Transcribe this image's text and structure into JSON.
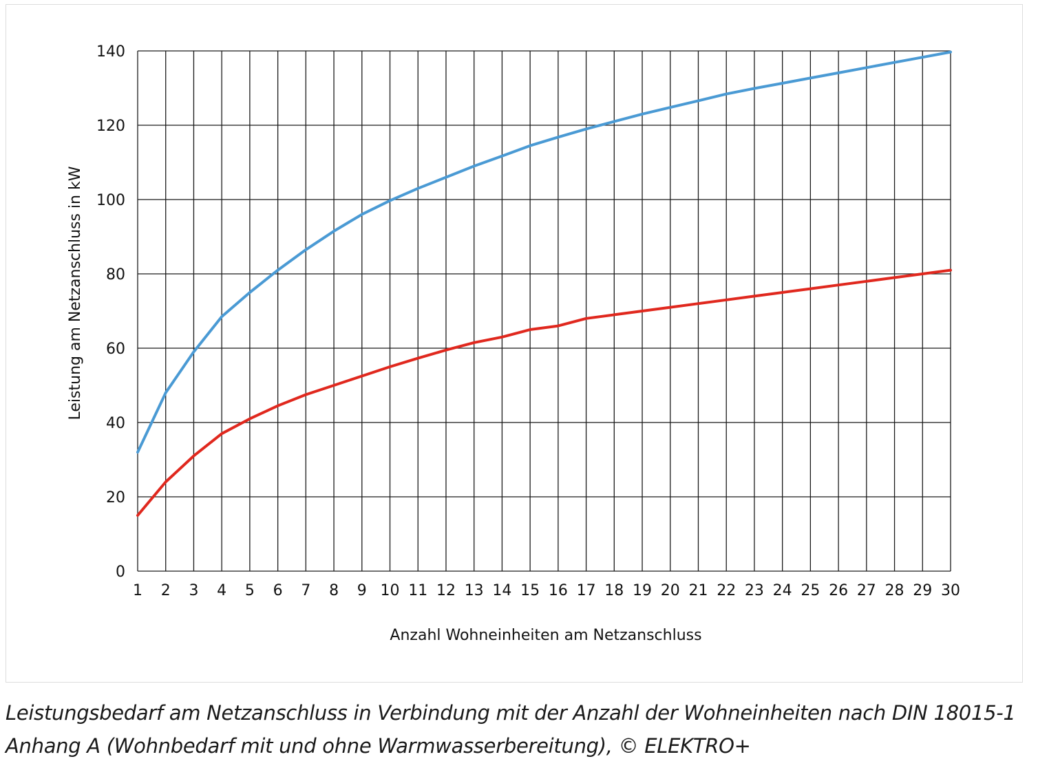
{
  "chart_data": {
    "type": "line",
    "xlabel": "Anzahl Wohneinheiten am Netzanschluss",
    "ylabel": "Leistung am Netzanschluss in kW",
    "xlim": [
      1,
      30
    ],
    "ylim": [
      0,
      140
    ],
    "x_ticks": [
      1,
      2,
      3,
      4,
      5,
      6,
      7,
      8,
      9,
      10,
      11,
      12,
      13,
      14,
      15,
      16,
      17,
      18,
      19,
      20,
      21,
      22,
      23,
      24,
      25,
      26,
      27,
      28,
      29,
      30
    ],
    "y_ticks": [
      0,
      20,
      40,
      60,
      80,
      100,
      120,
      140
    ],
    "grid": true,
    "x": [
      1,
      2,
      3,
      4,
      5,
      6,
      7,
      8,
      9,
      10,
      11,
      12,
      13,
      14,
      15,
      16,
      17,
      18,
      19,
      20,
      21,
      22,
      23,
      24,
      25,
      26,
      27,
      28,
      29,
      30
    ],
    "series": [
      {
        "color": "#4a9ad4",
        "values": [
          32,
          48,
          59,
          68.5,
          75,
          81,
          86.5,
          91.5,
          96,
          99.7,
          103,
          106,
          109,
          111.7,
          114.5,
          116.8,
          119,
          121,
          123,
          124.8,
          126.6,
          128.4,
          129.9,
          131.3,
          132.7,
          134.1,
          135.5,
          136.9,
          138.3,
          139.7
        ]
      },
      {
        "color": "#e0281e",
        "values": [
          15,
          24,
          31,
          37,
          41,
          44.5,
          47.5,
          50,
          52.5,
          55,
          57.3,
          59.5,
          61.5,
          63,
          65,
          66,
          68,
          69,
          70,
          71,
          72,
          73,
          74,
          75,
          76,
          77,
          78,
          79,
          80,
          81
        ]
      }
    ]
  },
  "caption": {
    "line1": "Leistungsbedarf am Netzanschluss in Verbindung mit der Anzahl der Wohneinheiten nach DIN 18015-1",
    "line2": "Anhang A (Wohnbedarf mit und ohne Warmwasserbereitung), © ELEKTRO+"
  }
}
